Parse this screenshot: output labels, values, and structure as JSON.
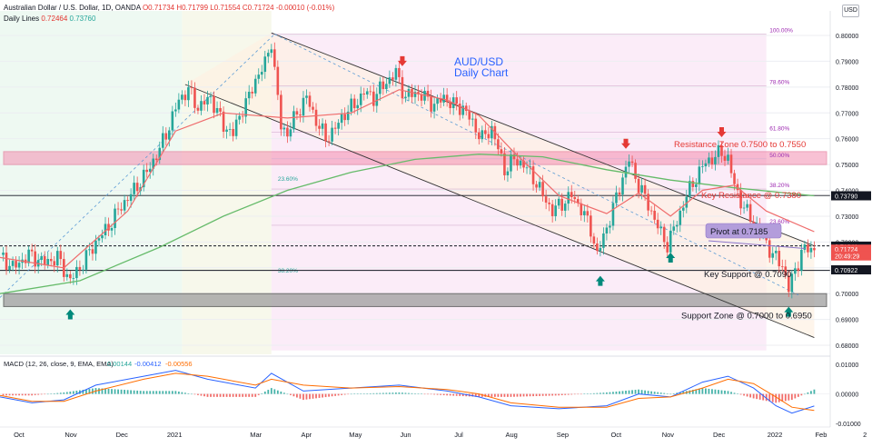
{
  "header": {
    "symbol_line": "Australian Dollar / U.S. Dollar, 1D, OANDA",
    "ohlc": {
      "o": "O0.71734",
      "h": "H0.71799",
      "l": "L0.71554",
      "c": "C0.71724",
      "chg": "-0.00010 (-0.01%)"
    },
    "daily_lines_label": "Daily Lines",
    "daily_lines_vals": [
      "0.72464",
      "0.73760"
    ],
    "currency": "USD"
  },
  "title": {
    "line1": "AUD/USD",
    "line2": "Daily Chart"
  },
  "annotations": {
    "resistance_zone": "Resistance Zone 0.7500 to 0.7550",
    "key_resistance": "Key Resistance @ 0.7380",
    "pivot": "Pivot at 0.7185",
    "key_support": "Key Support @ 0.7090",
    "support_zone": "Support Zone @ 0.7000 to 0.6950"
  },
  "fib_levels": [
    {
      "label": "100.00%",
      "price": 0.8005
    },
    {
      "label": "78.60%",
      "price": 0.7805
    },
    {
      "label": "61.80%",
      "price": 0.7625
    },
    {
      "label": "50.00%",
      "price": 0.7522
    },
    {
      "label": "38.20%",
      "price": 0.7405
    },
    {
      "label": "23.60%",
      "price": 0.7265
    }
  ],
  "fib_left": [
    {
      "label": "23.60%",
      "price": 0.743
    },
    {
      "label": "38.20%",
      "price": 0.7075
    }
  ],
  "price_axis": {
    "ticks": [
      "0.80000",
      "0.79000",
      "0.78000",
      "0.77000",
      "0.76000",
      "0.75000",
      "0.74000",
      "0.73000",
      "0.72000",
      "0.71000",
      "0.70000",
      "0.69000",
      "0.68000"
    ],
    "tick_values": [
      0.8,
      0.79,
      0.78,
      0.77,
      0.76,
      0.75,
      0.74,
      0.73,
      0.72,
      0.71,
      0.7,
      0.69,
      0.68
    ],
    "ylim": [
      0.6765,
      0.8095
    ],
    "badges": [
      {
        "text": "0.73790",
        "value": 0.7379,
        "color": "#131722"
      },
      {
        "text": "0.71841",
        "value": 0.71841,
        "color": "#131722"
      },
      {
        "text": "0.71724",
        "value": 0.71724,
        "color": "#ef5350"
      },
      {
        "text": "20:49:29",
        "value": 0.7146,
        "color": "#ef5350"
      },
      {
        "text": "0.70922",
        "value": 0.70922,
        "color": "#131722"
      }
    ]
  },
  "time_axis": {
    "labels": [
      "Oct",
      "Nov",
      "Dec",
      "2021",
      "Mar",
      "Apr",
      "May",
      "Jun",
      "Jul",
      "Aug",
      "Sep",
      "Oct",
      "Nov",
      "Dec",
      "2022",
      "Feb",
      "2"
    ]
  },
  "macd": {
    "label": "MACD (12, 26, close, 9, EMA, EMA)",
    "values": [
      "0.00144",
      "-0.00412",
      "-0.00556"
    ],
    "ticks": [
      "0.01000",
      "0.00000",
      "-0.01000"
    ],
    "tick_values": [
      0.01,
      0.0,
      -0.01
    ],
    "ylim": [
      -0.0112,
      0.0128
    ]
  },
  "chart_data": {
    "type": "candlestick",
    "title": "AUD/USD Daily Chart",
    "x_axis": [
      "Oct",
      "Nov",
      "Dec",
      "2021",
      "Mar",
      "Apr",
      "May",
      "Jun",
      "Jul",
      "Aug",
      "Sep",
      "Oct",
      "Nov",
      "Dec",
      "2022",
      "Feb",
      "2"
    ],
    "price_path": [
      [
        0,
        0.715
      ],
      [
        4,
        0.71
      ],
      [
        9,
        0.715
      ],
      [
        14,
        0.712
      ],
      [
        18,
        0.714
      ],
      [
        22,
        0.705
      ],
      [
        26,
        0.712
      ],
      [
        30,
        0.72
      ],
      [
        34,
        0.726
      ],
      [
        38,
        0.734
      ],
      [
        42,
        0.74
      ],
      [
        46,
        0.747
      ],
      [
        50,
        0.756
      ],
      [
        53,
        0.765
      ],
      [
        56,
        0.775
      ],
      [
        59,
        0.779
      ],
      [
        62,
        0.772
      ],
      [
        66,
        0.776
      ],
      [
        70,
        0.765
      ],
      [
        73,
        0.762
      ],
      [
        76,
        0.772
      ],
      [
        78,
        0.776
      ],
      [
        80,
        0.783
      ],
      [
        83,
        0.789
      ],
      [
        85,
        0.798
      ],
      [
        86,
        0.786
      ],
      [
        88,
        0.765
      ],
      [
        90,
        0.762
      ],
      [
        93,
        0.77
      ],
      [
        96,
        0.776
      ],
      [
        99,
        0.767
      ],
      [
        102,
        0.76
      ],
      [
        105,
        0.764
      ],
      [
        108,
        0.77
      ],
      [
        111,
        0.773
      ],
      [
        114,
        0.778
      ],
      [
        117,
        0.776
      ],
      [
        121,
        0.782
      ],
      [
        124,
        0.7855
      ],
      [
        127,
        0.776
      ],
      [
        130,
        0.778
      ],
      [
        133,
        0.776
      ],
      [
        136,
        0.773
      ],
      [
        139,
        0.776
      ],
      [
        142,
        0.773
      ],
      [
        145,
        0.772
      ],
      [
        148,
        0.766
      ],
      [
        151,
        0.76
      ],
      [
        154,
        0.764
      ],
      [
        156,
        0.756
      ],
      [
        158,
        0.748
      ],
      [
        161,
        0.752
      ],
      [
        164,
        0.75
      ],
      [
        167,
        0.745
      ],
      [
        170,
        0.738
      ],
      [
        173,
        0.732
      ],
      [
        176,
        0.735
      ],
      [
        179,
        0.738
      ],
      [
        182,
        0.733
      ],
      [
        185,
        0.725
      ],
      [
        187,
        0.715
      ],
      [
        189,
        0.722
      ],
      [
        192,
        0.733
      ],
      [
        195,
        0.745
      ],
      [
        197,
        0.752
      ],
      [
        199,
        0.745
      ],
      [
        202,
        0.737
      ],
      [
        205,
        0.729
      ],
      [
        207,
        0.723
      ],
      [
        209,
        0.719
      ],
      [
        212,
        0.728
      ],
      [
        215,
        0.738
      ],
      [
        218,
        0.745
      ],
      [
        221,
        0.751
      ],
      [
        224,
        0.753
      ],
      [
        226,
        0.755
      ],
      [
        228,
        0.752
      ],
      [
        230,
        0.742
      ],
      [
        233,
        0.733
      ],
      [
        236,
        0.728
      ],
      [
        239,
        0.722
      ],
      [
        242,
        0.715
      ],
      [
        245,
        0.711
      ],
      [
        247,
        0.702
      ],
      [
        249,
        0.709
      ],
      [
        251,
        0.716
      ],
      [
        253,
        0.7175
      ],
      [
        255,
        0.7172
      ]
    ],
    "ema_short": [
      [
        0,
        0.714
      ],
      [
        20,
        0.71
      ],
      [
        40,
        0.732
      ],
      [
        55,
        0.763
      ],
      [
        70,
        0.77
      ],
      [
        90,
        0.768
      ],
      [
        110,
        0.77
      ],
      [
        125,
        0.779
      ],
      [
        140,
        0.775
      ],
      [
        150,
        0.769
      ],
      [
        160,
        0.756
      ],
      [
        175,
        0.738
      ],
      [
        190,
        0.731
      ],
      [
        200,
        0.739
      ],
      [
        210,
        0.73
      ],
      [
        220,
        0.74
      ],
      [
        230,
        0.742
      ],
      [
        240,
        0.732
      ],
      [
        255,
        0.724
      ]
    ],
    "sma_long": [
      [
        0,
        0.7
      ],
      [
        25,
        0.705
      ],
      [
        50,
        0.718
      ],
      [
        70,
        0.73
      ],
      [
        90,
        0.74
      ],
      [
        110,
        0.747
      ],
      [
        130,
        0.752
      ],
      [
        150,
        0.754
      ],
      [
        170,
        0.753
      ],
      [
        190,
        0.748
      ],
      [
        210,
        0.744
      ],
      [
        230,
        0.741
      ],
      [
        255,
        0.7379
      ]
    ],
    "zones": [
      {
        "name": "Resistance Zone",
        "from": 0.75,
        "to": 0.755
      },
      {
        "name": "Support Zone",
        "from": 0.695,
        "to": 0.7
      }
    ],
    "levels": [
      {
        "name": "Key Resistance",
        "value": 0.738
      },
      {
        "name": "Pivot",
        "value": 0.7185
      },
      {
        "name": "Key Support",
        "value": 0.709
      }
    ],
    "channel": {
      "upper": [
        [
          85,
          0.801
        ],
        [
          255,
          0.7185
        ]
      ],
      "lower": [
        [
          58,
          0.781
        ],
        [
          255,
          0.683
        ]
      ]
    },
    "arrows": [
      {
        "dir": "down",
        "x": 126,
        "y": 0.7895
      },
      {
        "dir": "down",
        "x": 196,
        "y": 0.7575
      },
      {
        "dir": "down",
        "x": 226,
        "y": 0.762
      },
      {
        "dir": "up",
        "x": 22,
        "y": 0.6925
      },
      {
        "dir": "up",
        "x": 188,
        "y": 0.7055
      },
      {
        "dir": "up",
        "x": 210,
        "y": 0.7145
      },
      {
        "dir": "up",
        "x": 247,
        "y": 0.6935
      }
    ],
    "macd_line": [
      [
        0,
        -0.001
      ],
      [
        10,
        -0.003
      ],
      [
        20,
        -0.002
      ],
      [
        30,
        0.003
      ],
      [
        45,
        0.006
      ],
      [
        55,
        0.008
      ],
      [
        65,
        0.005
      ],
      [
        80,
        0.002
      ],
      [
        85,
        0.007
      ],
      [
        95,
        0.001
      ],
      [
        110,
        0.002
      ],
      [
        125,
        0.003
      ],
      [
        140,
        0.001
      ],
      [
        150,
        -0.001
      ],
      [
        160,
        -0.004
      ],
      [
        175,
        -0.005
      ],
      [
        190,
        -0.004
      ],
      [
        200,
        0.0
      ],
      [
        210,
        -0.001
      ],
      [
        220,
        0.004
      ],
      [
        228,
        0.006
      ],
      [
        236,
        0.002
      ],
      [
        243,
        -0.004
      ],
      [
        248,
        -0.0065
      ],
      [
        255,
        -0.0041
      ]
    ],
    "signal_line": [
      [
        0,
        -0.0005
      ],
      [
        10,
        -0.0025
      ],
      [
        20,
        -0.0025
      ],
      [
        30,
        0.001
      ],
      [
        45,
        0.005
      ],
      [
        55,
        0.007
      ],
      [
        65,
        0.006
      ],
      [
        80,
        0.003
      ],
      [
        85,
        0.005
      ],
      [
        95,
        0.003
      ],
      [
        110,
        0.002
      ],
      [
        125,
        0.0025
      ],
      [
        140,
        0.0015
      ],
      [
        150,
        0.0
      ],
      [
        160,
        -0.003
      ],
      [
        175,
        -0.0045
      ],
      [
        190,
        -0.0045
      ],
      [
        200,
        -0.0015
      ],
      [
        210,
        -0.001
      ],
      [
        220,
        0.002
      ],
      [
        228,
        0.005
      ],
      [
        236,
        0.0035
      ],
      [
        243,
        -0.001
      ],
      [
        248,
        -0.0045
      ],
      [
        255,
        -0.0056
      ]
    ]
  }
}
